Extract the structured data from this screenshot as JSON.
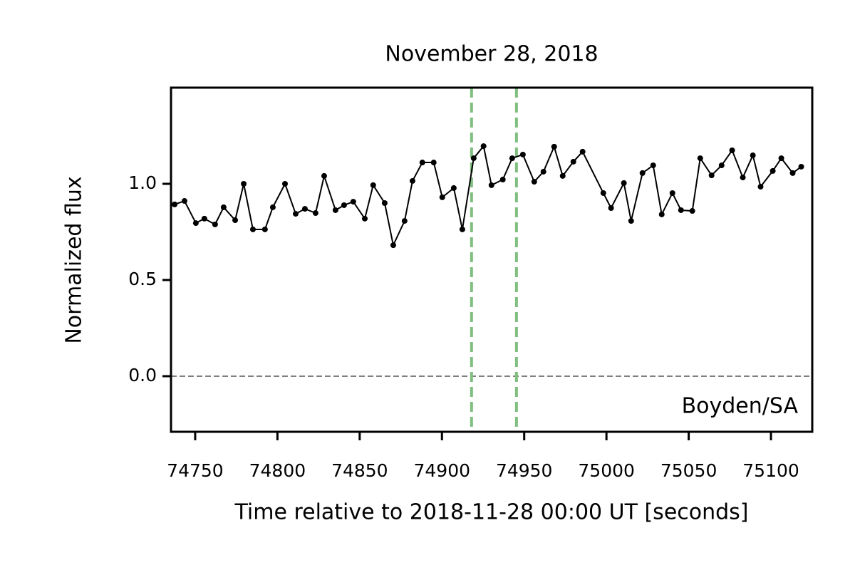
{
  "chart_data": {
    "type": "line",
    "title": "November 28, 2018",
    "xlabel": "Time relative to 2018-11-28 00:00 UT [seconds]",
    "ylabel": "Normalized flux",
    "annotation": "Boyden/SA",
    "x": [
      74737.5,
      74743.5,
      74750.4,
      74755.6,
      74762.1,
      74767.3,
      74774.3,
      74779.5,
      74785.1,
      74792.4,
      74797.2,
      74804.6,
      74811.1,
      74816.7,
      74823.2,
      74828.4,
      74835.3,
      74840.5,
      74846.1,
      74853.1,
      74858.2,
      74865.2,
      74870.4,
      74877.3,
      74882.1,
      74888.1,
      74895.0,
      74900.2,
      74907.2,
      74912.4,
      74919.3,
      74925.3,
      74930.1,
      74937.0,
      74942.7,
      74949.2,
      74956.1,
      74961.7,
      74968.2,
      74973.4,
      74979.9,
      74985.5,
      74998.1,
      75002.8,
      75010.6,
      75015.0,
      75021.9,
      75028.4,
      75033.6,
      75040.1,
      75045.3,
      75052.2,
      75057.0,
      75063.9,
      75070.0,
      75076.4,
      75082.9,
      75089.0,
      75093.7,
      75101.1,
      75106.3,
      75113.2,
      75118.4
    ],
    "series": [
      {
        "name": "flux",
        "color": "#000000",
        "values": [
          0.893,
          0.911,
          0.796,
          0.819,
          0.789,
          0.878,
          0.811,
          1.0,
          0.763,
          0.763,
          0.878,
          1.0,
          0.844,
          0.87,
          0.848,
          1.041,
          0.863,
          0.889,
          0.907,
          0.819,
          0.993,
          0.9,
          0.681,
          0.807,
          1.015,
          1.111,
          1.111,
          0.93,
          0.978,
          0.763,
          1.133,
          1.196,
          0.993,
          1.022,
          1.133,
          1.152,
          1.011,
          1.063,
          1.193,
          1.041,
          1.115,
          1.167,
          0.952,
          0.874,
          1.004,
          0.807,
          1.056,
          1.096,
          0.841,
          0.952,
          0.863,
          0.859,
          1.133,
          1.044,
          1.096,
          1.174,
          1.033,
          1.148,
          0.985,
          1.067,
          1.133,
          1.056,
          1.089
        ]
      }
    ],
    "vlines": [
      74918.0,
      74945.3
    ],
    "vline_color": "#7fbf7f",
    "hline": 0,
    "hline_color": "#808080",
    "xlim": [
      74735.3,
      75125.1
    ],
    "ylim": [
      -0.289,
      1.5
    ],
    "xticks": [
      74750,
      74800,
      74850,
      74900,
      74950,
      75000,
      75050,
      75100
    ],
    "yticks": [
      {
        "value": 0,
        "label": "0.0"
      },
      {
        "value": 0.5,
        "label": "0.5"
      },
      {
        "value": 1,
        "label": "1.0"
      }
    ]
  }
}
